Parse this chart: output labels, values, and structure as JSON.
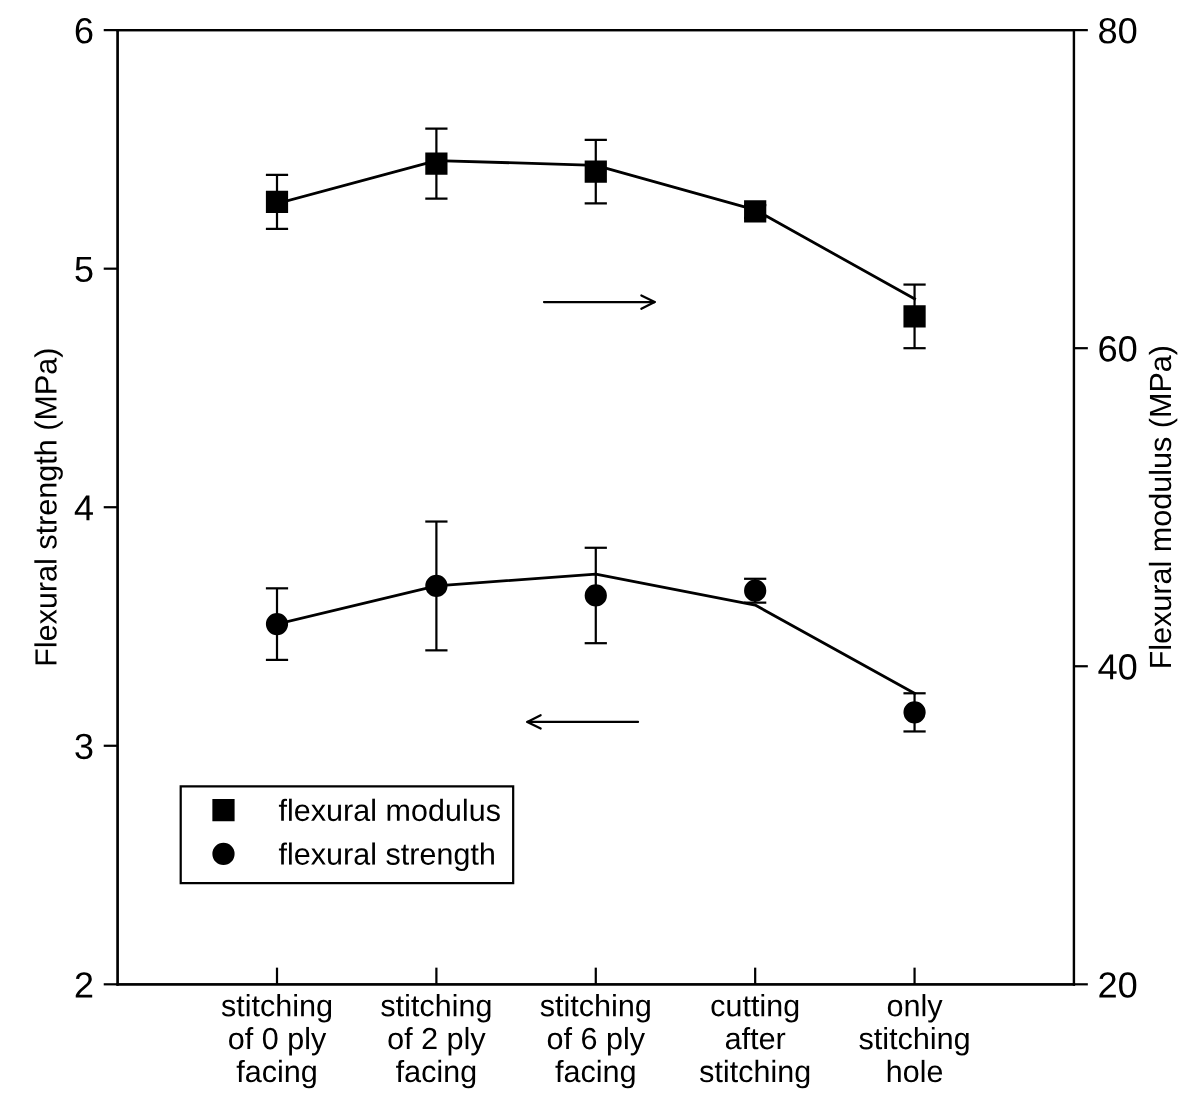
{
  "chart_data": {
    "type": "scatter",
    "ylabel": "Flexural strength (MPa)",
    "y2label": "Flexural modulus (MPa)",
    "categories": [
      "stitching\nof 0 ply\nfacing",
      "stitching\nof 2 ply\nfacing",
      "stitching\nof 6 ply\nfacing",
      "cutting\nafter\nstitching",
      "only\nstitching\nhole"
    ],
    "ylim": [
      2,
      6
    ],
    "yticks": [
      2,
      3,
      4,
      5,
      6
    ],
    "y2lim": [
      20,
      80
    ],
    "y2ticks": [
      20,
      40,
      60,
      80
    ],
    "series": [
      {
        "name": "flexural modulus",
        "axis": "y2",
        "marker": "square",
        "color": "#000000",
        "values": [
          69.2,
          71.6,
          71.1,
          68.6,
          62.0
        ],
        "errors": [
          1.7,
          2.2,
          2.0,
          0.4,
          2.0
        ]
      },
      {
        "name": "flexural strength",
        "marker": "circle",
        "color": "#000000",
        "values": [
          3.51,
          3.67,
          3.63,
          3.65,
          3.14
        ],
        "errors": [
          0.15,
          0.27,
          0.2,
          0.05,
          0.08
        ]
      },
      {
        "type": "line",
        "axis": "y2",
        "color": "#000000",
        "line_style": "solid",
        "values": [
          69.1,
          71.8,
          71.5,
          68.7,
          63.1
        ]
      },
      {
        "type": "line",
        "color": "#000000",
        "line_style": "solid",
        "values": [
          3.51,
          3.67,
          3.72,
          3.59,
          3.22
        ]
      }
    ],
    "legend": "bottom left"
  }
}
